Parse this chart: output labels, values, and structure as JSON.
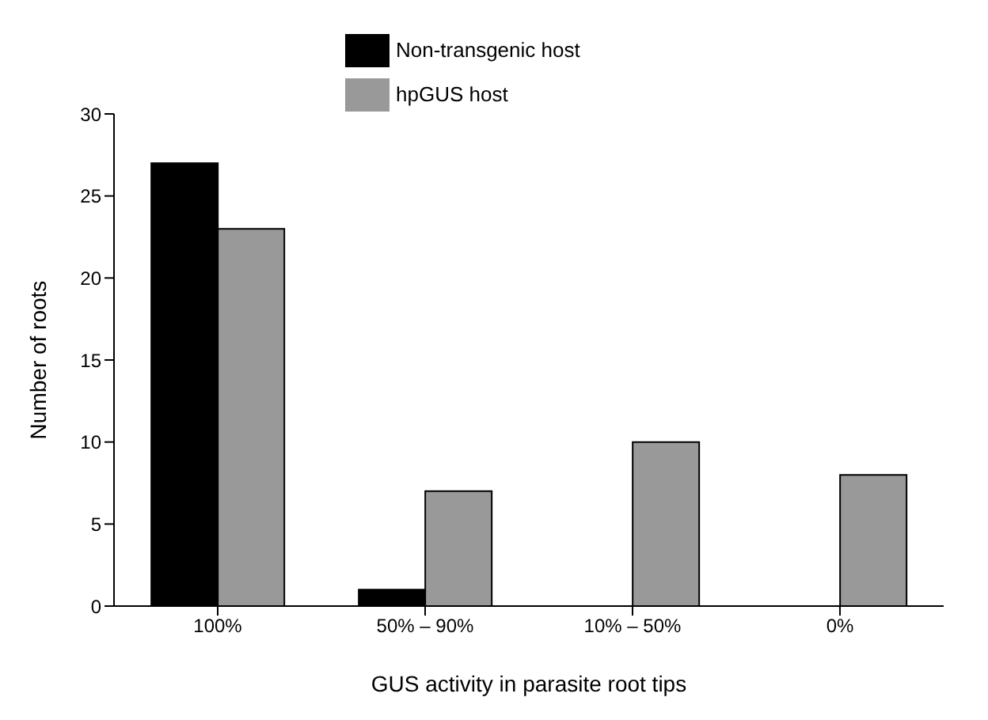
{
  "chart_data": {
    "type": "bar",
    "xlabel": "GUS activity in parasite root tips",
    "ylabel": "Number of roots",
    "categories": [
      "100%",
      "50% – 90%",
      "10% – 50%",
      "0%"
    ],
    "series": [
      {
        "name": "Non-transgenic host",
        "color": "#000000",
        "values": [
          27,
          1,
          0,
          0
        ]
      },
      {
        "name": "hpGUS host",
        "color": "#999999",
        "values": [
          23,
          7,
          10,
          8
        ]
      }
    ],
    "ylim": [
      0,
      30
    ],
    "yticks": [
      0,
      5,
      10,
      15,
      20,
      25,
      30
    ],
    "legend": "top"
  }
}
